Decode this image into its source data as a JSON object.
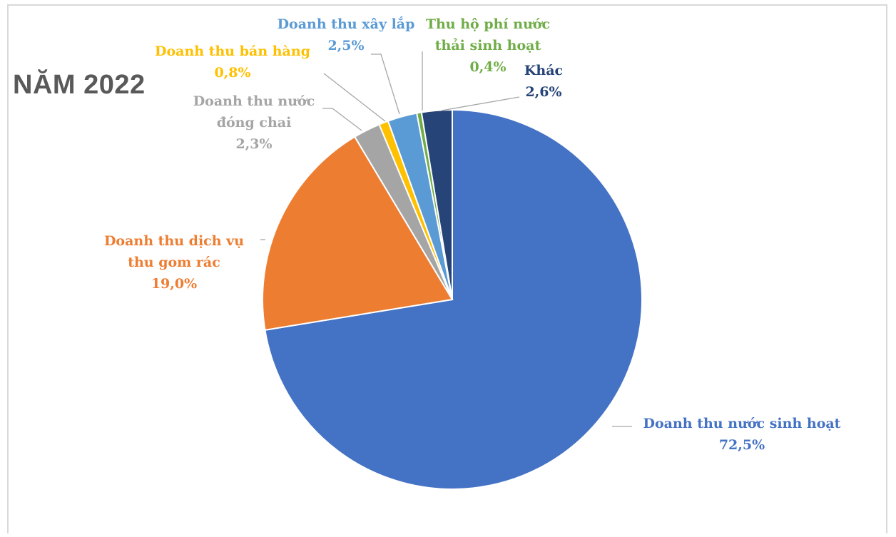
{
  "chart_data": {
    "type": "pie",
    "title": "NĂM 2022",
    "slices": [
      {
        "label_lines": [
          "Doanh thu nước sinh hoạt"
        ],
        "value_text": "72,5%",
        "value": 72.5,
        "color": "#4472C4"
      },
      {
        "label_lines": [
          "Doanh thu dịch vụ",
          "thu gom rác"
        ],
        "value_text": "19,0%",
        "value": 19.0,
        "color": "#ED7D31"
      },
      {
        "label_lines": [
          "Doanh thu nước",
          "đóng chai"
        ],
        "value_text": "2,3%",
        "value": 2.3,
        "color": "#A5A5A5"
      },
      {
        "label_lines": [
          "Doanh thu bán hàng"
        ],
        "value_text": "0,8%",
        "value": 0.8,
        "color": "#FFC000"
      },
      {
        "label_lines": [
          "Doanh thu xây lắp"
        ],
        "value_text": "2,5%",
        "value": 2.5,
        "color": "#5B9BD5"
      },
      {
        "label_lines": [
          "Thu hộ phí nước",
          "thải sinh hoạt"
        ],
        "value_text": "0,4%",
        "value": 0.4,
        "color": "#70AD47"
      },
      {
        "label_lines": [
          "Khác"
        ],
        "value_text": "2,6%",
        "value": 2.6,
        "color": "#264478"
      }
    ]
  }
}
